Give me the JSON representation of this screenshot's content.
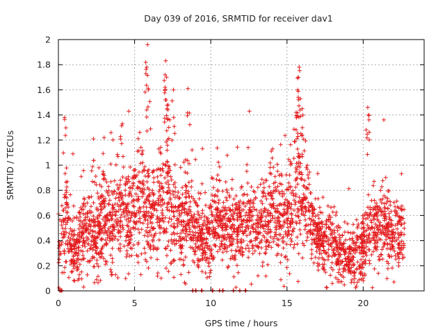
{
  "chart_data": {
    "type": "scatter",
    "title": "Day 039 of 2016, SRMTID for receiver dav1",
    "xlabel": "GPS time / hours",
    "ylabel": "SRMTID / TECUs",
    "xlim": [
      0,
      24
    ],
    "ylim": [
      0,
      2
    ],
    "xticks": [
      0,
      5,
      10,
      15,
      20
    ],
    "xtick_labels": [
      "0",
      "5",
      "10",
      "15",
      "20"
    ],
    "yticks": [
      0,
      0.2,
      0.4,
      0.6,
      0.8,
      1,
      1.2,
      1.4,
      1.6,
      1.8,
      2
    ],
    "ytick_labels": [
      "0",
      "0.2",
      "0.4",
      "0.6",
      "0.8",
      "1",
      "1.2",
      "1.4",
      "1.6",
      "1.8",
      "2"
    ],
    "grid": true,
    "marker": "+",
    "series": [
      {
        "name": "SRMTID dav1",
        "color": "#e31a1c",
        "x_range": [
          0,
          22.7
        ],
        "sample_count": 2900,
        "envelope": [
          [
            0.0,
            0.35,
            0.15
          ],
          [
            0.25,
            0.45,
            0.15
          ],
          [
            0.5,
            0.6,
            0.2
          ],
          [
            0.75,
            0.35,
            0.12
          ],
          [
            1.0,
            0.3,
            0.1
          ],
          [
            1.5,
            0.45,
            0.15
          ],
          [
            2.0,
            0.5,
            0.15
          ],
          [
            2.5,
            0.4,
            0.15
          ],
          [
            3.0,
            0.55,
            0.2
          ],
          [
            3.5,
            0.5,
            0.2
          ],
          [
            4.0,
            0.65,
            0.2
          ],
          [
            4.5,
            0.55,
            0.2
          ],
          [
            5.0,
            0.7,
            0.22
          ],
          [
            5.5,
            0.75,
            0.25
          ],
          [
            6.0,
            0.55,
            0.2
          ],
          [
            6.5,
            0.6,
            0.2
          ],
          [
            7.0,
            0.75,
            0.25
          ],
          [
            7.5,
            0.6,
            0.2
          ],
          [
            8.0,
            0.55,
            0.2
          ],
          [
            8.5,
            0.55,
            0.2
          ],
          [
            9.0,
            0.45,
            0.15
          ],
          [
            9.5,
            0.4,
            0.15
          ],
          [
            10.0,
            0.45,
            0.15
          ],
          [
            10.5,
            0.55,
            0.18
          ],
          [
            11.0,
            0.5,
            0.15
          ],
          [
            11.5,
            0.45,
            0.15
          ],
          [
            12.0,
            0.5,
            0.15
          ],
          [
            12.5,
            0.55,
            0.18
          ],
          [
            13.0,
            0.5,
            0.15
          ],
          [
            13.5,
            0.55,
            0.2
          ],
          [
            14.0,
            0.6,
            0.2
          ],
          [
            14.5,
            0.6,
            0.2
          ],
          [
            15.0,
            0.55,
            0.2
          ],
          [
            15.5,
            0.8,
            0.25
          ],
          [
            16.0,
            0.8,
            0.25
          ],
          [
            16.5,
            0.55,
            0.15
          ],
          [
            17.0,
            0.45,
            0.12
          ],
          [
            17.5,
            0.4,
            0.15
          ],
          [
            18.0,
            0.4,
            0.15
          ],
          [
            18.5,
            0.3,
            0.12
          ],
          [
            19.0,
            0.25,
            0.1
          ],
          [
            19.5,
            0.3,
            0.12
          ],
          [
            20.0,
            0.35,
            0.15
          ],
          [
            20.5,
            0.45,
            0.15
          ],
          [
            21.0,
            0.5,
            0.15
          ],
          [
            21.5,
            0.5,
            0.15
          ],
          [
            22.0,
            0.45,
            0.15
          ],
          [
            22.5,
            0.45,
            0.15
          ],
          [
            22.7,
            0.5,
            0.15
          ]
        ],
        "peaks": [
          [
            5.85,
            1.96
          ],
          [
            5.8,
            1.78
          ],
          [
            5.9,
            1.6
          ],
          [
            7.0,
            1.72
          ],
          [
            7.1,
            1.7
          ],
          [
            7.2,
            1.48
          ],
          [
            7.0,
            1.62
          ],
          [
            7.55,
            1.6
          ],
          [
            8.5,
            1.61
          ],
          [
            15.8,
            1.78
          ],
          [
            15.75,
            1.7
          ],
          [
            15.7,
            1.6
          ],
          [
            15.6,
            1.42
          ],
          [
            16.0,
            1.45
          ],
          [
            20.3,
            1.46
          ],
          [
            20.35,
            1.4
          ],
          [
            0.4,
            1.38
          ],
          [
            4.2,
            1.33
          ],
          [
            2.3,
            1.21
          ],
          [
            3.0,
            1.22
          ]
        ],
        "zero_cluster_x": [
          0.1,
          0.2,
          8.8,
          9.0,
          9.4,
          10.1,
          10.6,
          10.8,
          11.5,
          11.9,
          12.3
        ]
      }
    ]
  }
}
